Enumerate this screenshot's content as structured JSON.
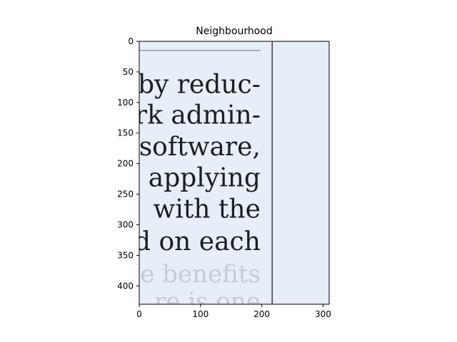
{
  "chart_data": {
    "type": "image",
    "title": "Neighbourhood",
    "xlim": [
      0,
      310
    ],
    "ylim": [
      430,
      0
    ],
    "y_inverted": true,
    "xticks": [
      0,
      100,
      200,
      300
    ],
    "yticks": [
      0,
      50,
      100,
      150,
      200,
      250,
      300,
      350,
      400
    ],
    "image_content": {
      "background_color": "#e8eef8",
      "paper_color": "#eaf0fa",
      "ink_color": "#1b1e1f",
      "text_lines": [
        {
          "text": "t by reduc-",
          "y": 68
        },
        {
          "text": "ork admin-",
          "y": 118
        },
        {
          "text": "software,",
          "y": 170
        },
        {
          "text": "applying",
          "y": 221
        },
        {
          "text": "with  the",
          "y": 272
        },
        {
          "text": "d  on  each",
          "y": 325
        }
      ],
      "ghost_lines": [
        {
          "text": "he benefits",
          "y": 380
        },
        {
          "text": "re  is  one",
          "y": 425
        }
      ],
      "vertical_rule_x": 217,
      "top_rule_y": 15
    }
  }
}
